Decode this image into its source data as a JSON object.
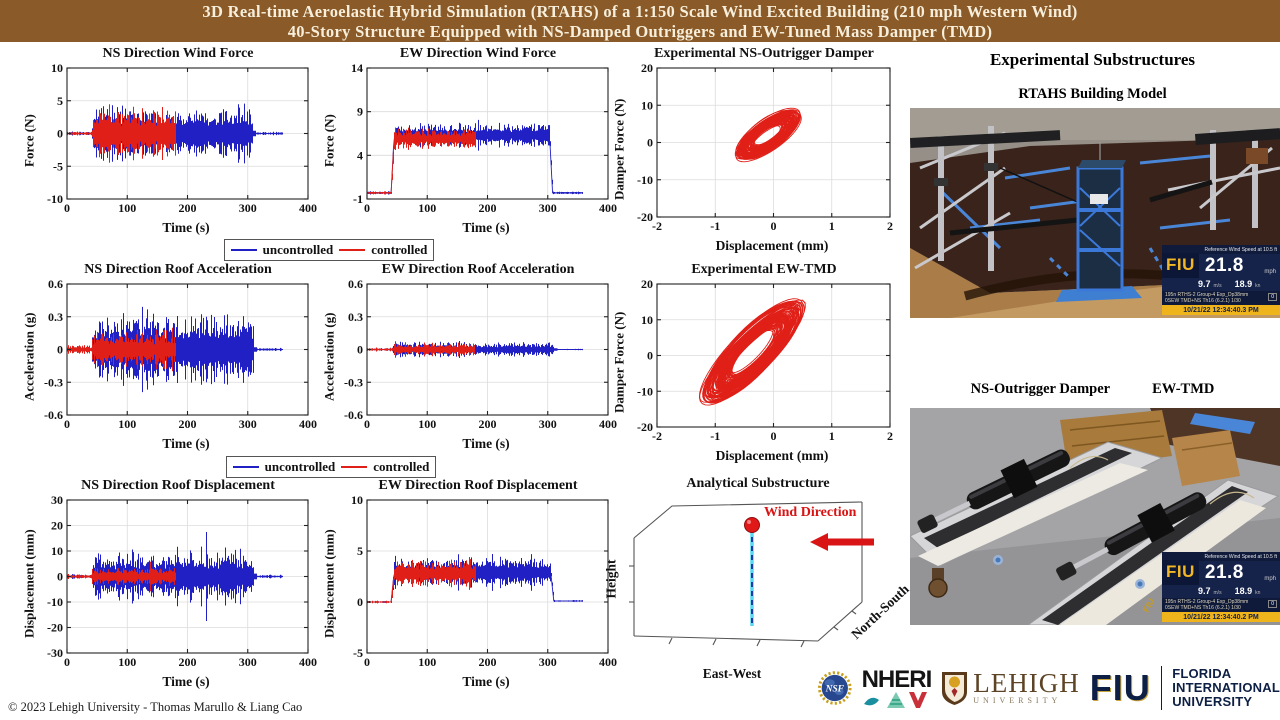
{
  "header": {
    "line1": "3D Real-time Aeroelastic Hybrid Simulation (RTAHS) of a 1:150 Scale Wind Excited Building (210 mph Western Wind)",
    "line2": "40-Story Structure Equipped with NS-Damped Outriggers and EW-Tuned Mass Damper (TMD)",
    "bg_color": "#8a5a28",
    "text_color": "#f7efdb"
  },
  "legend": {
    "uncontrolled_label": "uncontrolled",
    "controlled_label": "controlled",
    "uncontrolled_color": "#2020c4",
    "controlled_color": "#e02018"
  },
  "chart_data": [
    {
      "id": "ns-wind-force",
      "type": "line",
      "title": "NS Direction Wind Force",
      "xlabel": "Time (s)",
      "ylabel": "Force (N)",
      "xlim": [
        0,
        400
      ],
      "ylim": [
        -10,
        10
      ],
      "xticks": [
        0,
        100,
        200,
        300,
        400
      ],
      "yticks": [
        -10,
        -5,
        0,
        5,
        10
      ],
      "grid": true,
      "series": [
        {
          "name": "uncontrolled",
          "color": "#2020c4",
          "segments": [
            {
              "t0": 0,
              "t1": 40,
              "mean": 0,
              "amp": 0.35
            },
            {
              "t0": 40,
              "t1": 308,
              "mean": 0,
              "amp": 4.6,
              "peak": 7
            },
            {
              "t0": 308,
              "t1": 358,
              "mean": 0,
              "amp": 0.3
            }
          ]
        },
        {
          "name": "controlled",
          "color": "#e02018",
          "segments": [
            {
              "t0": 0,
              "t1": 40,
              "mean": 0,
              "amp": 0.35
            },
            {
              "t0": 40,
              "t1": 180,
              "mean": 0,
              "amp": 4.6,
              "peak": 7
            }
          ]
        }
      ]
    },
    {
      "id": "ew-wind-force",
      "type": "line",
      "title": "EW Direction Wind Force",
      "xlabel": "Time (s)",
      "ylabel": "Force (N)",
      "xlim": [
        0,
        400
      ],
      "ylim": [
        -1,
        14
      ],
      "xticks": [
        0,
        100,
        200,
        300,
        400
      ],
      "yticks": [
        -1,
        4,
        9,
        14
      ],
      "grid": true,
      "series": [
        {
          "name": "uncontrolled",
          "color": "#2020c4",
          "segments": [
            {
              "t0": 0,
              "t1": 40,
              "mean": -0.3,
              "amp": 0.25
            },
            {
              "t0": 40,
              "t1": 303,
              "mean": 6.3,
              "amp": 1.6,
              "peak": 2.7
            },
            {
              "t0": 303,
              "t1": 358,
              "mean": -0.3,
              "amp": 0.2
            }
          ]
        },
        {
          "name": "controlled",
          "color": "#e02018",
          "segments": [
            {
              "t0": 0,
              "t1": 40,
              "mean": -0.3,
              "amp": 0.25
            },
            {
              "t0": 40,
              "t1": 180,
              "mean": 5.9,
              "amp": 1.5,
              "peak": 2.6
            }
          ]
        }
      ]
    },
    {
      "id": "ns-outrigger-damper",
      "type": "hysteresis",
      "title": "Experimental NS-Outrigger Damper",
      "xlabel": "Displacement (mm)",
      "ylabel": "Damper Force (N)",
      "xlim": [
        -2,
        2
      ],
      "ylim": [
        -20,
        20
      ],
      "xticks": [
        -2,
        -1,
        0,
        1,
        2
      ],
      "yticks": [
        -20,
        -10,
        0,
        10,
        20
      ],
      "grid": true,
      "color": "#e02018",
      "loop": {
        "cx": -0.1,
        "cy": 2,
        "a": 0.5,
        "b": 4.0,
        "slope": 9,
        "loops": 75,
        "jitter": 0.22
      }
    },
    {
      "id": "ns-roof-acceleration",
      "type": "line",
      "title": "NS Direction Roof Acceleration",
      "xlabel": "Time (s)",
      "ylabel": "Acceleration (g)",
      "xlim": [
        0,
        400
      ],
      "ylim": [
        -0.6,
        0.6
      ],
      "xticks": [
        0,
        100,
        200,
        300,
        400
      ],
      "yticks": [
        -0.6,
        -0.3,
        0,
        0.3,
        0.6
      ],
      "grid": true,
      "series": [
        {
          "name": "uncontrolled",
          "color": "#2020c4",
          "segments": [
            {
              "t0": 0,
              "t1": 40,
              "mean": 0,
              "amp": 0.02
            },
            {
              "t0": 40,
              "t1": 310,
              "mean": 0,
              "amp": 0.4,
              "peak": 0.62
            },
            {
              "t0": 310,
              "t1": 358,
              "mean": 0,
              "amp": 0.015
            }
          ]
        },
        {
          "name": "controlled",
          "color": "#e02018",
          "segments": [
            {
              "t0": 0,
              "t1": 40,
              "mean": 0,
              "amp": 0.05
            },
            {
              "t0": 40,
              "t1": 180,
              "mean": 0,
              "amp": 0.21,
              "peak": 0.3
            }
          ]
        }
      ]
    },
    {
      "id": "ew-roof-acceleration",
      "type": "line",
      "title": "EW Direction Roof Acceleration",
      "xlabel": "Time (s)",
      "ylabel": "Acceleration (g)",
      "xlim": [
        0,
        400
      ],
      "ylim": [
        -0.6,
        0.6
      ],
      "xticks": [
        0,
        100,
        200,
        300,
        400
      ],
      "yticks": [
        -0.6,
        -0.3,
        0,
        0.3,
        0.6
      ],
      "grid": true,
      "series": [
        {
          "name": "uncontrolled",
          "color": "#2020c4",
          "segments": [
            {
              "t0": 0,
              "t1": 40,
              "mean": 0,
              "amp": 0.012
            },
            {
              "t0": 40,
              "t1": 310,
              "mean": 0,
              "amp": 0.08,
              "peak": 0.2
            },
            {
              "t0": 310,
              "t1": 358,
              "mean": 0,
              "amp": 0.008
            }
          ]
        },
        {
          "name": "controlled",
          "color": "#e02018",
          "segments": [
            {
              "t0": 0,
              "t1": 40,
              "mean": 0,
              "amp": 0.02
            },
            {
              "t0": 40,
              "t1": 178,
              "mean": 0,
              "amp": 0.07,
              "peak": 0.17
            }
          ]
        }
      ]
    },
    {
      "id": "ew-tmd",
      "type": "hysteresis",
      "title": "Experimental EW-TMD",
      "xlabel": "Displacement (mm)",
      "ylabel": "Damper Force (N)",
      "xlim": [
        -2,
        2
      ],
      "ylim": [
        -20,
        20
      ],
      "xticks": [
        -2,
        -1,
        0,
        1,
        2
      ],
      "yticks": [
        -20,
        -10,
        0,
        10,
        20
      ],
      "grid": true,
      "color": "#e02018",
      "loop": {
        "cx": -0.35,
        "cy": 1,
        "a": 0.78,
        "b": 7.0,
        "slope": 14,
        "loops": 95,
        "jitter": 0.28
      }
    },
    {
      "id": "ns-roof-displacement",
      "type": "line",
      "title": "NS Direction Roof Displacement",
      "xlabel": "Time (s)",
      "ylabel": "Displacement (mm)",
      "xlim": [
        0,
        400
      ],
      "ylim": [
        -30,
        30
      ],
      "xticks": [
        0,
        100,
        200,
        300,
        400
      ],
      "yticks": [
        -30,
        -20,
        -10,
        0,
        10,
        20,
        30
      ],
      "grid": true,
      "series": [
        {
          "name": "uncontrolled",
          "color": "#2020c4",
          "segments": [
            {
              "t0": 0,
              "t1": 40,
              "mean": 0,
              "amp": 1.0
            },
            {
              "t0": 40,
              "t1": 310,
              "mean": 0,
              "amp": 12.5,
              "peak": 25
            },
            {
              "t0": 310,
              "t1": 358,
              "mean": 0,
              "amp": 0.8
            }
          ]
        },
        {
          "name": "controlled",
          "color": "#e02018",
          "segments": [
            {
              "t0": 0,
              "t1": 40,
              "mean": 0,
              "amp": 1.2
            },
            {
              "t0": 40,
              "t1": 180,
              "mean": 0,
              "amp": 4.5,
              "peak": 7
            }
          ]
        }
      ]
    },
    {
      "id": "ew-roof-displacement",
      "type": "line",
      "title": "EW Direction Roof Displacement",
      "xlabel": "Time (s)",
      "ylabel": "Displacement (mm)",
      "xlim": [
        0,
        400
      ],
      "ylim": [
        -5,
        10
      ],
      "xticks": [
        0,
        100,
        200,
        300,
        400
      ],
      "yticks": [
        -5,
        0,
        5,
        10
      ],
      "grid": true,
      "series": [
        {
          "name": "uncontrolled",
          "color": "#2020c4",
          "segments": [
            {
              "t0": 0,
              "t1": 40,
              "mean": 0,
              "amp": 0.15
            },
            {
              "t0": 40,
              "t1": 305,
              "mean": 2.9,
              "amp": 1.7,
              "peak": 3.3
            },
            {
              "t0": 305,
              "t1": 358,
              "mean": 0.1,
              "amp": 0.12
            }
          ]
        },
        {
          "name": "controlled",
          "color": "#e02018",
          "segments": [
            {
              "t0": 0,
              "t1": 40,
              "mean": 0,
              "amp": 0.15
            },
            {
              "t0": 40,
              "t1": 180,
              "mean": 2.8,
              "amp": 1.6,
              "peak": 3.2
            }
          ]
        }
      ]
    },
    {
      "id": "analytical-substructure",
      "type": "3d-pendulum",
      "title": "Analytical Substructure",
      "zlabel": "Height",
      "xlabel": "East-West",
      "ylabel": "North-South",
      "annotation": "Wind Direction",
      "annotation_color": "#d81414",
      "pendulum_colors": {
        "line": "#5ad8f2",
        "dash": "#1a2a99",
        "ball": "#e01818"
      }
    }
  ],
  "right_panel": {
    "heading": "Experimental Substructures",
    "photo1_label": "RTAHS Building Model",
    "photo2_label_left": "NS-Outrigger Damper",
    "photo2_label_right": "EW-TMD",
    "overlay1": {
      "ref": "Reference Wind Speed  at 10.5 ft",
      "brand": "FIU",
      "speed": "21.8",
      "unit": "mph",
      "ms": "9.7",
      "ms_unit": "m/s",
      "kn": "18.9",
      "kn_unit": "kn",
      "line1": "195n RTHS-2 Group-4 Exp_Dp38mm",
      "badge": "0",
      "line2": "0SEW TMD+NS  Th16 (6.2.1) 1/30",
      "datetime": "10/21/22   12:34:40.3 PM"
    },
    "overlay2": {
      "ref": "Reference Wind Speed  at 10.5 ft",
      "brand": "FIU",
      "speed": "21.8",
      "unit": "mph",
      "ms": "9.7",
      "ms_unit": "m/s",
      "kn": "18.9",
      "kn_unit": "kn",
      "line1": "195n RTHS-2 Group-4 Exp_Dp38mm",
      "badge": "0",
      "line2": "0SEW TMD+NS  Th16 (6.2.1) 1/30",
      "datetime": "10/21/22   12:34:40.2 PM"
    }
  },
  "logos": {
    "nsf": "NSF",
    "nheri": "NHERI",
    "lehigh": "LEHIGH",
    "lehigh_sub": "UNIVERSITY",
    "fiu": "FIU",
    "fiu_line1": "FLORIDA",
    "fiu_line2": "INTERNATIONAL",
    "fiu_line3": "UNIVERSITY"
  },
  "footer": {
    "copyright": "© 2023 Lehigh University - Thomas Marullo & Liang Cao"
  }
}
